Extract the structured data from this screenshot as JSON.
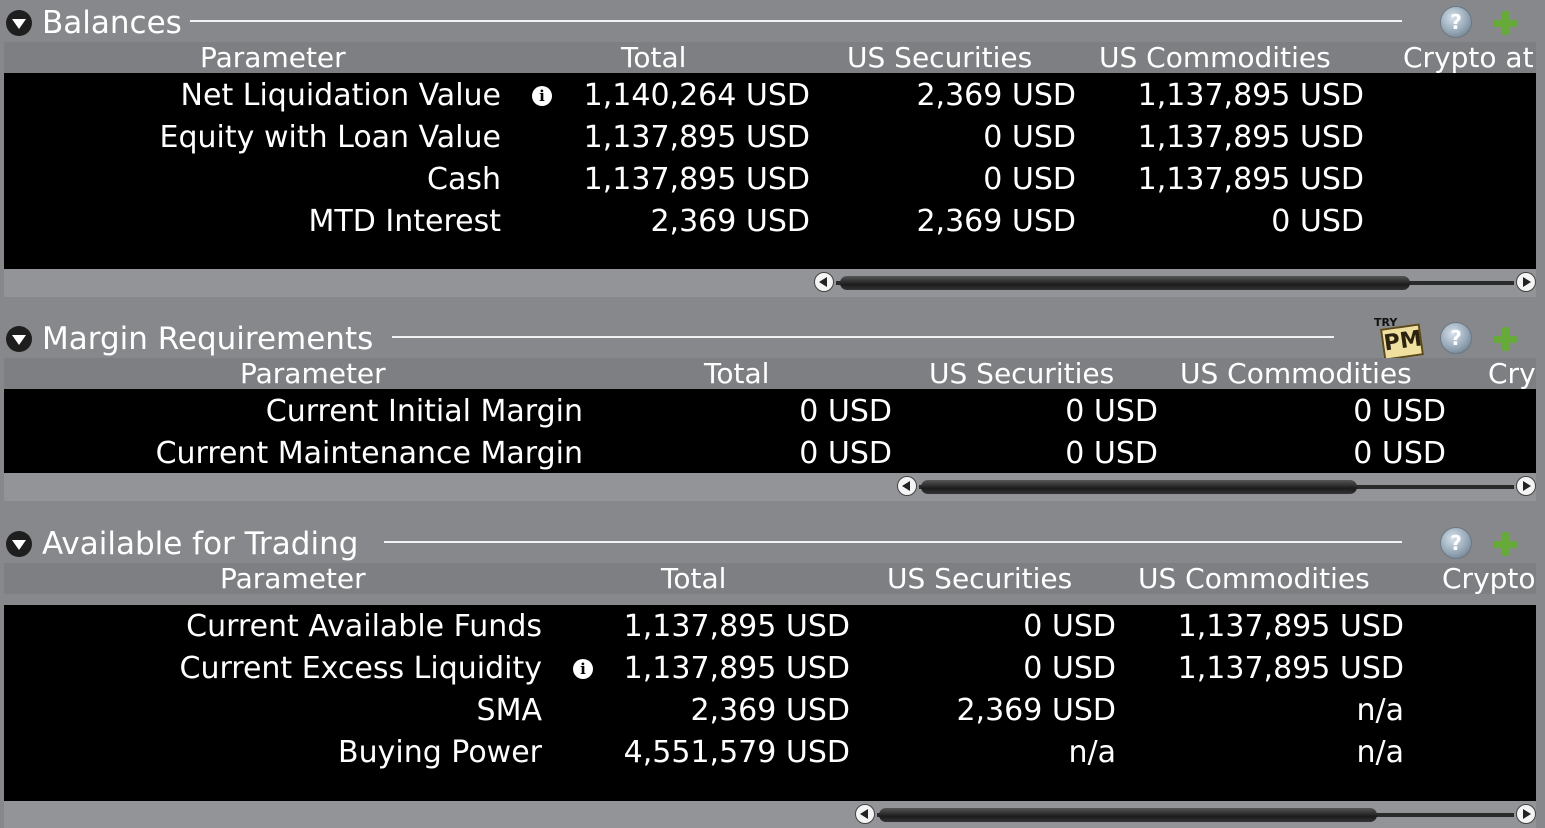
{
  "balances": {
    "title": "Balances",
    "columns": [
      "Parameter",
      "Total",
      "US Securities",
      "US Commodities",
      "Crypto at"
    ],
    "rows": [
      {
        "param": "Net Liquidation Value",
        "total": "1,140,264 USD",
        "us_securities": "2,369 USD",
        "us_commodities": "1,137,895 USD",
        "info": true
      },
      {
        "param": "Equity with Loan Value",
        "total": "1,137,895 USD",
        "us_securities": "0 USD",
        "us_commodities": "1,137,895 USD"
      },
      {
        "param": "Cash",
        "total": "1,137,895 USD",
        "us_securities": "0 USD",
        "us_commodities": "1,137,895 USD"
      },
      {
        "param": "MTD Interest",
        "total": "2,369 USD",
        "us_securities": "2,369 USD",
        "us_commodities": "0 USD"
      }
    ]
  },
  "margin": {
    "title": "Margin Requirements",
    "columns": [
      "Parameter",
      "Total",
      "US Securities",
      "US Commodities",
      "Cry"
    ],
    "try_pm": {
      "try": "TRY",
      "pm": "PM"
    },
    "rows": [
      {
        "param": "Current Initial Margin",
        "total": "0 USD",
        "us_securities": "0 USD",
        "us_commodities": "0 USD"
      },
      {
        "param": "Current Maintenance Margin",
        "total": "0 USD",
        "us_securities": "0 USD",
        "us_commodities": "0 USD"
      }
    ]
  },
  "trading": {
    "title": "Available for Trading",
    "columns": [
      "Parameter",
      "Total",
      "US Securities",
      "US Commodities",
      "Crypto"
    ],
    "rows": [
      {
        "param": "Current Available Funds",
        "total": "1,137,895 USD",
        "us_securities": "0 USD",
        "us_commodities": "1,137,895 USD"
      },
      {
        "param": "Current Excess Liquidity",
        "total": "1,137,895 USD",
        "us_securities": "0 USD",
        "us_commodities": "1,137,895 USD",
        "info": true
      },
      {
        "param": "SMA",
        "total": "2,369 USD",
        "us_securities": "2,369 USD",
        "us_commodities": "n/a"
      },
      {
        "param": "Buying Power",
        "total": "4,551,579 USD",
        "us_securities": "n/a",
        "us_commodities": "n/a"
      }
    ]
  },
  "icons": {
    "help": "help-icon",
    "add": "add-icon",
    "collapse": "collapse-triangle-icon",
    "info": "info-icon",
    "help_glyph": "?"
  },
  "colors": {
    "panel_bg": "#86888b",
    "grid_bg": "#000000",
    "add_green": "#66aa3a"
  }
}
